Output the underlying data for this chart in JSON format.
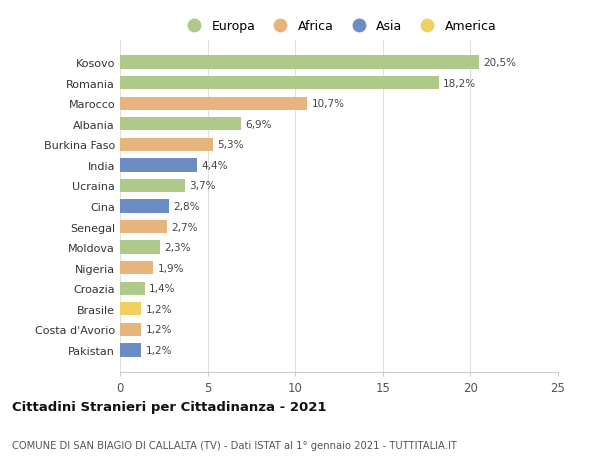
{
  "countries": [
    "Kosovo",
    "Romania",
    "Marocco",
    "Albania",
    "Burkina Faso",
    "India",
    "Ucraina",
    "Cina",
    "Senegal",
    "Moldova",
    "Nigeria",
    "Croazia",
    "Brasile",
    "Costa d'Avorio",
    "Pakistan"
  ],
  "values": [
    20.5,
    18.2,
    10.7,
    6.9,
    5.3,
    4.4,
    3.7,
    2.8,
    2.7,
    2.3,
    1.9,
    1.4,
    1.2,
    1.2,
    1.2
  ],
  "labels": [
    "20,5%",
    "18,2%",
    "10,7%",
    "6,9%",
    "5,3%",
    "4,4%",
    "3,7%",
    "2,8%",
    "2,7%",
    "2,3%",
    "1,9%",
    "1,4%",
    "1,2%",
    "1,2%",
    "1,2%"
  ],
  "continents": [
    "Europa",
    "Europa",
    "Africa",
    "Europa",
    "Africa",
    "Asia",
    "Europa",
    "Asia",
    "Africa",
    "Europa",
    "Africa",
    "Europa",
    "America",
    "Africa",
    "Asia"
  ],
  "colors": {
    "Europa": "#aec98a",
    "Africa": "#e8b47e",
    "Asia": "#6b8dc4",
    "America": "#f0d060"
  },
  "xlim": [
    0,
    25
  ],
  "xticks": [
    0,
    5,
    10,
    15,
    20,
    25
  ],
  "title": "Cittadini Stranieri per Cittadinanza - 2021",
  "subtitle": "COMUNE DI SAN BIAGIO DI CALLALTA (TV) - Dati ISTAT al 1° gennaio 2021 - TUTTITALIA.IT",
  "background_color": "#ffffff",
  "grid_color": "#e0e0e0",
  "legend_order": [
    "Europa",
    "Africa",
    "Asia",
    "America"
  ]
}
